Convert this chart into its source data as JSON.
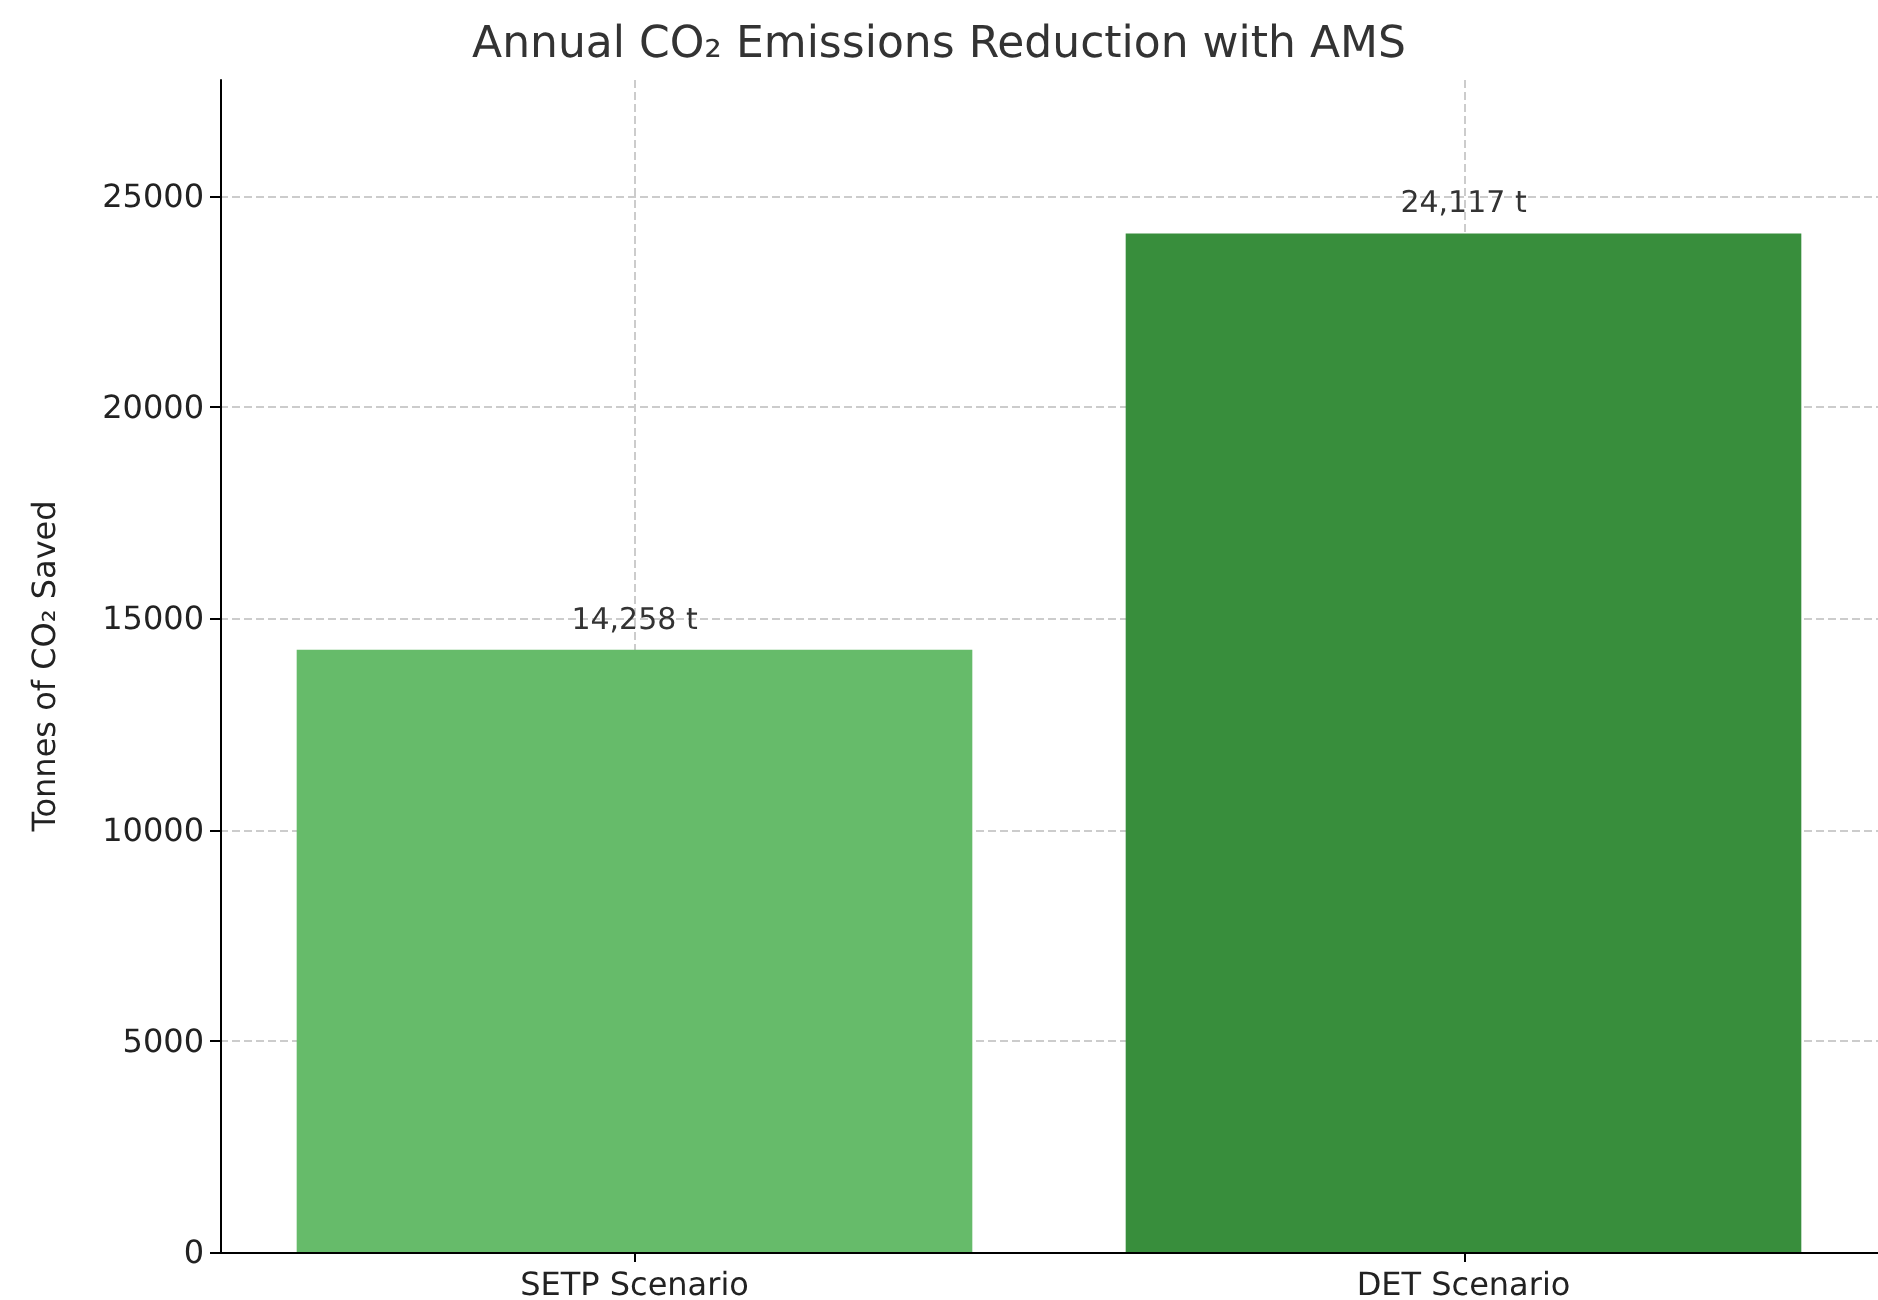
{
  "chart_data": {
    "type": "bar",
    "title": "Annual CO₂ Emissions Reduction with AMS",
    "ylabel": "Tonnes of CO₂ Saved",
    "categories": [
      "SETP Scenario",
      "DET Scenario"
    ],
    "values": [
      14258,
      24117
    ],
    "colors": [
      "#66bb6a",
      "#388e3c"
    ],
    "value_labels": [
      "14,258 t",
      "24,117 t"
    ],
    "ylim": [
      0,
      27750
    ],
    "yticks": [
      0,
      5000,
      10000,
      15000,
      20000,
      25000
    ],
    "grid": true
  }
}
